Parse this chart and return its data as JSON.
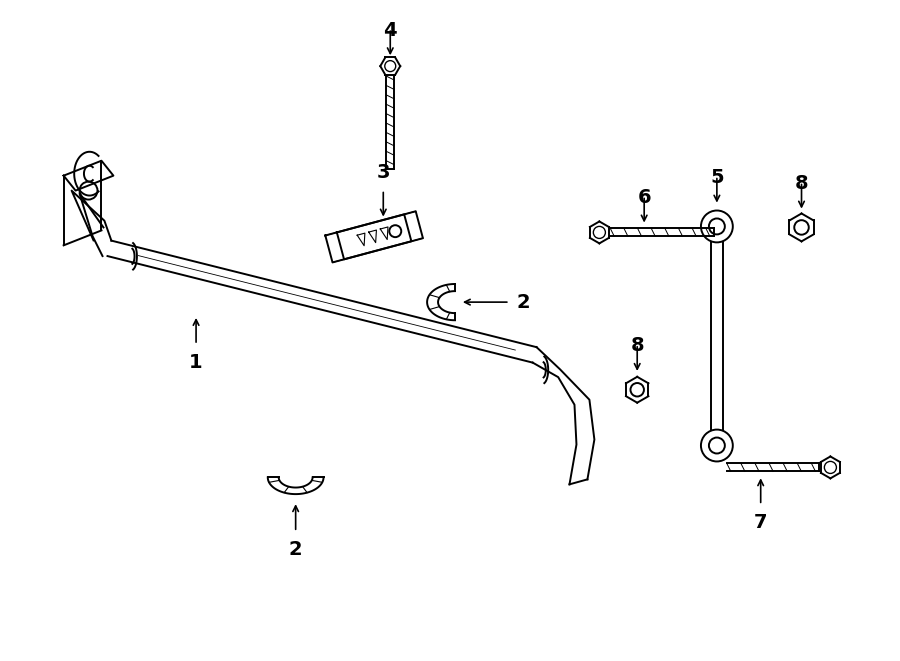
{
  "background_color": "#ffffff",
  "line_color": "#000000",
  "lw": 1.4,
  "tlw": 0.8,
  "figsize": [
    9.0,
    6.61
  ],
  "dpi": 100
}
